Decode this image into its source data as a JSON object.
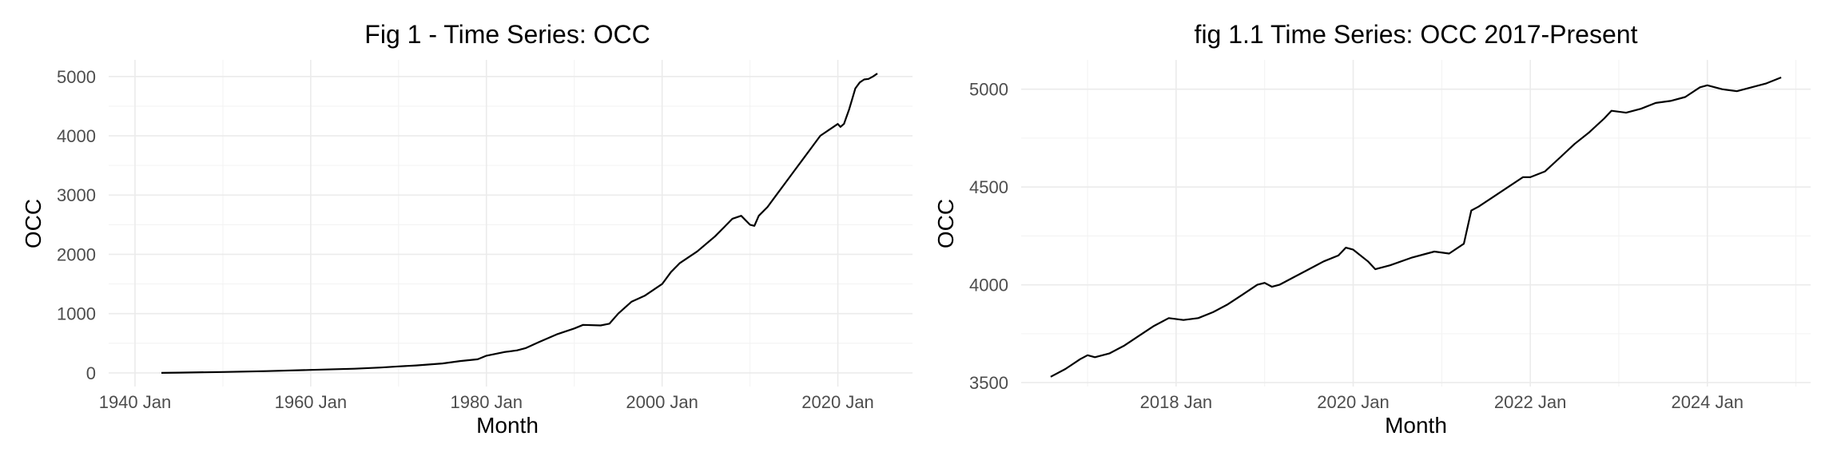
{
  "chart_data": [
    {
      "type": "line",
      "title": "Fig 1 - Time Series: OCC",
      "xlabel": "Month",
      "ylabel": "OCC",
      "x_ticks": [
        1940,
        1960,
        1980,
        2000,
        2020
      ],
      "x_tick_labels": [
        "1940 Jan",
        "1960 Jan",
        "1980 Jan",
        "2000 Jan",
        "2020 Jan"
      ],
      "y_ticks": [
        0,
        1000,
        2000,
        3000,
        4000,
        5000
      ],
      "y_tick_labels": [
        "0",
        "1000",
        "2000",
        "3000",
        "4000",
        "5000"
      ],
      "xlim": [
        1937.0,
        2028.5
      ],
      "ylim": [
        -230,
        5280
      ],
      "grid": true,
      "series": [
        {
          "x": [
            1943.0,
            1945.0,
            1950.0,
            1955.0,
            1960.0,
            1965.0,
            1968.0,
            1970.0,
            1972.0,
            1975.0,
            1977.0,
            1979.0,
            1980.0,
            1982.0,
            1983.5,
            1984.5,
            1986.0,
            1988.0,
            1990.0,
            1991.0,
            1993.0,
            1994.0,
            1995.0,
            1996.5,
            1998.0,
            2000.0,
            2001.0,
            2002.0,
            2004.0,
            2006.0,
            2007.0,
            2008.0,
            2009.0,
            2010.0,
            2010.5,
            2011.0,
            2012.0,
            2013.0,
            2014.0,
            2015.0,
            2016.0,
            2017.0,
            2018.0,
            2019.0,
            2020.0,
            2020.3,
            2020.7,
            2021.3,
            2022.0,
            2022.5,
            2023.0,
            2023.5,
            2024.0,
            2024.5
          ],
          "y": [
            0,
            5,
            15,
            30,
            50,
            70,
            90,
            110,
            125,
            160,
            200,
            230,
            290,
            350,
            380,
            420,
            520,
            650,
            750,
            810,
            800,
            830,
            1000,
            1200,
            1300,
            1500,
            1700,
            1850,
            2050,
            2300,
            2450,
            2600,
            2650,
            2500,
            2480,
            2650,
            2800,
            3000,
            3200,
            3400,
            3600,
            3800,
            4000,
            4100,
            4200,
            4150,
            4200,
            4450,
            4800,
            4900,
            4950,
            4960,
            5000,
            5050
          ]
        }
      ]
    },
    {
      "type": "line",
      "title": "fig 1.1 Time Series: OCC 2017-Present",
      "xlabel": "Month",
      "ylabel": "OCC",
      "x_ticks": [
        "2018-01",
        "2020-01",
        "2022-01",
        "2024-01"
      ],
      "x_tick_labels": [
        "2018 Jan",
        "2020 Jan",
        "2022 Jan",
        "2024 Jan"
      ],
      "y_ticks": [
        3500,
        4000,
        4500,
        5000
      ],
      "y_tick_labels": [
        "3500",
        "4000",
        "4500",
        "5000"
      ],
      "xlim": [
        "2016-04",
        "2025-03"
      ],
      "ylim": [
        3480,
        5150
      ],
      "grid": true,
      "series": [
        {
          "x": [
            "2016-08",
            "2016-10",
            "2016-12",
            "2017-01",
            "2017-02",
            "2017-04",
            "2017-06",
            "2017-08",
            "2017-10",
            "2017-12",
            "2018-02",
            "2018-04",
            "2018-06",
            "2018-08",
            "2018-10",
            "2018-12",
            "2019-01",
            "2019-02",
            "2019-03",
            "2019-05",
            "2019-07",
            "2019-09",
            "2019-11",
            "2019-12",
            "2020-01",
            "2020-03",
            "2020-04",
            "2020-06",
            "2020-09",
            "2020-12",
            "2021-02",
            "2021-04",
            "2021-05",
            "2021-06",
            "2021-08",
            "2021-10",
            "2021-12",
            "2022-01",
            "2022-03",
            "2022-05",
            "2022-07",
            "2022-09",
            "2022-11",
            "2022-12",
            "2023-02",
            "2023-04",
            "2023-06",
            "2023-08",
            "2023-10",
            "2023-12",
            "2024-01",
            "2024-03",
            "2024-05",
            "2024-07",
            "2024-09",
            "2024-11"
          ],
          "y": [
            3530,
            3570,
            3620,
            3640,
            3630,
            3650,
            3690,
            3740,
            3790,
            3830,
            3820,
            3830,
            3860,
            3900,
            3950,
            4000,
            4010,
            3990,
            4000,
            4040,
            4080,
            4120,
            4150,
            4190,
            4180,
            4120,
            4080,
            4100,
            4140,
            4170,
            4160,
            4210,
            4380,
            4400,
            4450,
            4500,
            4550,
            4550,
            4580,
            4650,
            4720,
            4780,
            4850,
            4890,
            4880,
            4900,
            4930,
            4940,
            4960,
            5010,
            5020,
            5000,
            4990,
            5010,
            5030,
            5060
          ]
        }
      ]
    }
  ]
}
